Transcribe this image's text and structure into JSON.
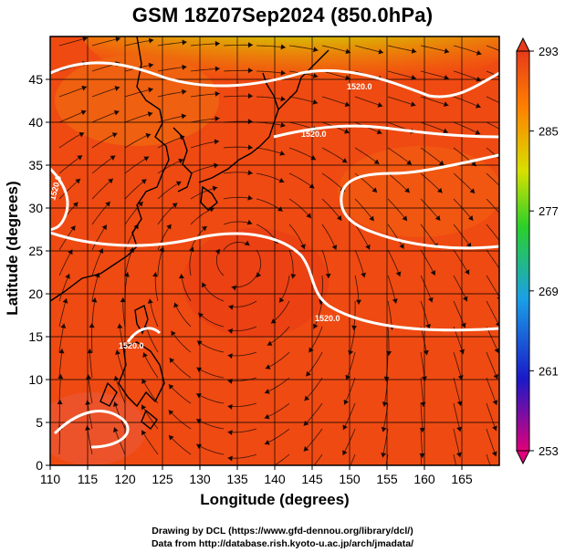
{
  "map": {
    "title": "GSM 18Z07Sep2024 (850.0hPa)",
    "x_label": "Longitude (degrees)",
    "y_label": "Latitude  (degrees)",
    "lon_range": [
      110,
      170
    ],
    "lat_range": [
      0,
      50
    ],
    "lon_ticks": [
      "110",
      "115",
      "120",
      "125",
      "130",
      "135",
      "140",
      "145",
      "150",
      "155",
      "160",
      "165"
    ],
    "lat_ticks": [
      "0",
      "5",
      "10",
      "15",
      "20",
      "25",
      "30",
      "35",
      "40",
      "45"
    ],
    "grid_spacing_deg": 5,
    "field": "temperature (K) with wind streamlines",
    "contour_labels": [
      "1520.0",
      "1520.0",
      "1520.0",
      "1520.0",
      "1520.0"
    ],
    "low_center_lon": 135,
    "low_center_lat": 24
  },
  "colorbar": {
    "labels": [
      "293",
      "285",
      "277",
      "269",
      "261",
      "253"
    ],
    "range": [
      253,
      293
    ],
    "colors": [
      "#e0007a",
      "#1a1ac8",
      "#1aa0e6",
      "#2ad02a",
      "#d8e000",
      "#ff8000",
      "#e83a1a"
    ]
  },
  "credits": {
    "line1": "Drawing by DCL (https://www.gfd-dennou.org/library/dcl/)",
    "line2": "Data from http://database.rish.kyoto-u.ac.jp/arch/jmadata/"
  }
}
